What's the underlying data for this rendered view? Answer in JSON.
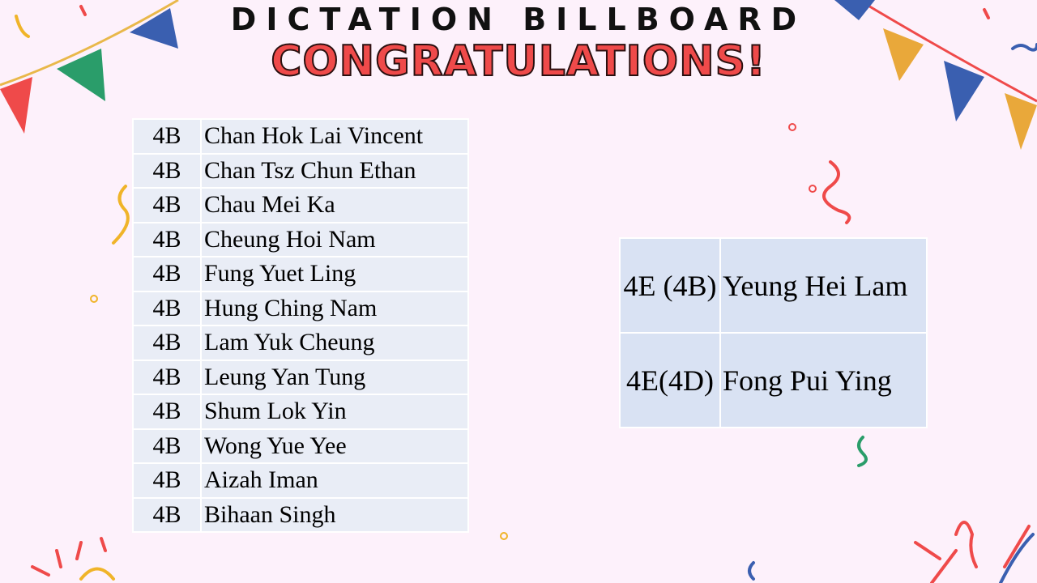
{
  "header": {
    "title": "DICTATION BILLBOARD",
    "subtitle": "CONGRATULATIONS!"
  },
  "left_table": {
    "rows": [
      {
        "class": "4B",
        "name": "Chan Hok Lai Vincent"
      },
      {
        "class": "4B",
        "name": "Chan Tsz Chun Ethan"
      },
      {
        "class": "4B",
        "name": "Chau Mei Ka"
      },
      {
        "class": "4B",
        "name": "Cheung Hoi Nam"
      },
      {
        "class": "4B",
        "name": "Fung Yuet Ling"
      },
      {
        "class": "4B",
        "name": "Hung Ching Nam"
      },
      {
        "class": "4B",
        "name": "Lam Yuk Cheung"
      },
      {
        "class": "4B",
        "name": "Leung Yan Tung"
      },
      {
        "class": "4B",
        "name": "Shum Lok Yin"
      },
      {
        "class": "4B",
        "name": "Wong Yue Yee"
      },
      {
        "class": "4B",
        "name": "Aizah Iman"
      },
      {
        "class": "4B",
        "name": "Bihaan Singh"
      }
    ]
  },
  "right_table": {
    "rows": [
      {
        "class": "4E (4B)",
        "name": "Yeung Hei Lam"
      },
      {
        "class": "4E(4D)",
        "name": "Fong Pui Ying"
      }
    ]
  },
  "colors": {
    "background": "#fdf1fb",
    "title_red": "#ef4a4a",
    "table_left": "#e9edf6",
    "table_right": "#d9e2f3"
  }
}
